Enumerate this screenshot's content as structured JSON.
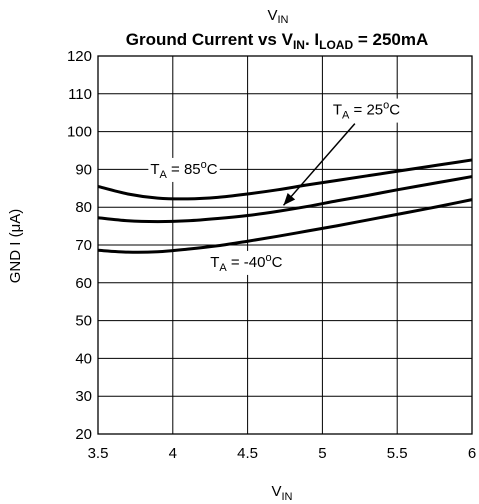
{
  "chart_data": {
    "type": "line",
    "title": {
      "main": "Ground Current vs V",
      "main_sub": "IN",
      "mid": ". I",
      "mid_sub": "LOAD",
      "tail": " = 250mA",
      "above": "V",
      "above_sub": "IN"
    },
    "xlabel": {
      "text": "V",
      "sub": "IN"
    },
    "ylabel": "GND I (μA)",
    "xlim": [
      3.5,
      6
    ],
    "ylim": [
      20,
      120
    ],
    "xticks": [
      3.5,
      4,
      4.5,
      5,
      5.5,
      6
    ],
    "xtick_labels": [
      "3.5",
      "4",
      "4.5",
      "5",
      "5.5",
      "6"
    ],
    "yticks": [
      20,
      30,
      40,
      50,
      60,
      70,
      80,
      90,
      100,
      110,
      120
    ],
    "ytick_labels": [
      "20",
      "30",
      "40",
      "50",
      "60",
      "70",
      "80",
      "90",
      "100",
      "110",
      "120"
    ],
    "grid": true,
    "series": [
      {
        "name": "TA = 85°C",
        "x": [
          3.5,
          3.7,
          3.9,
          4.1,
          4.3,
          4.5,
          4.7,
          4.9,
          5.1,
          5.3,
          5.5,
          5.7,
          5.9,
          6.0
        ],
        "y": [
          85.5,
          83.5,
          82.4,
          82.2,
          82.6,
          83.5,
          84.6,
          85.9,
          87.1,
          88.3,
          89.5,
          90.7,
          91.9,
          92.5
        ]
      },
      {
        "name": "TA = 25°C",
        "x": [
          3.5,
          3.7,
          3.9,
          4.1,
          4.3,
          4.5,
          4.7,
          4.9,
          5.1,
          5.3,
          5.5,
          5.7,
          5.9,
          6.0
        ],
        "y": [
          77.2,
          76.4,
          76.2,
          76.4,
          77.0,
          77.8,
          78.9,
          80.2,
          81.7,
          83.1,
          84.6,
          86.0,
          87.4,
          88.1
        ]
      },
      {
        "name": "TA = -40°C",
        "x": [
          3.5,
          3.7,
          3.9,
          4.1,
          4.3,
          4.5,
          4.7,
          4.9,
          5.1,
          5.3,
          5.5,
          5.7,
          5.9,
          6.0
        ],
        "y": [
          68.6,
          68.1,
          68.2,
          68.9,
          69.8,
          71.0,
          72.3,
          73.7,
          75.1,
          76.6,
          78.1,
          79.6,
          81.2,
          82.0
        ]
      }
    ],
    "annotations": [
      {
        "base": "T",
        "sub": "A",
        "rest": " = 25",
        "sup": "o",
        "unit": "C",
        "anchor_x": 5.07,
        "anchor_y": 104.5,
        "arrow_to_x": 4.74,
        "arrow_to_y": 80.5,
        "bg": true
      },
      {
        "base": "T",
        "sub": "A",
        "rest": " = 85",
        "sup": "o",
        "unit": "C",
        "anchor_x": 3.85,
        "anchor_y": 88.8,
        "bg": true
      },
      {
        "base": "T",
        "sub": "A",
        "rest": " = -40",
        "sup": "o",
        "unit": "C",
        "anchor_x": 4.25,
        "anchor_y": 64.2,
        "bg": true
      }
    ],
    "colors": {
      "line": "#000000",
      "grid": "#000000",
      "background": "#ffffff"
    }
  }
}
